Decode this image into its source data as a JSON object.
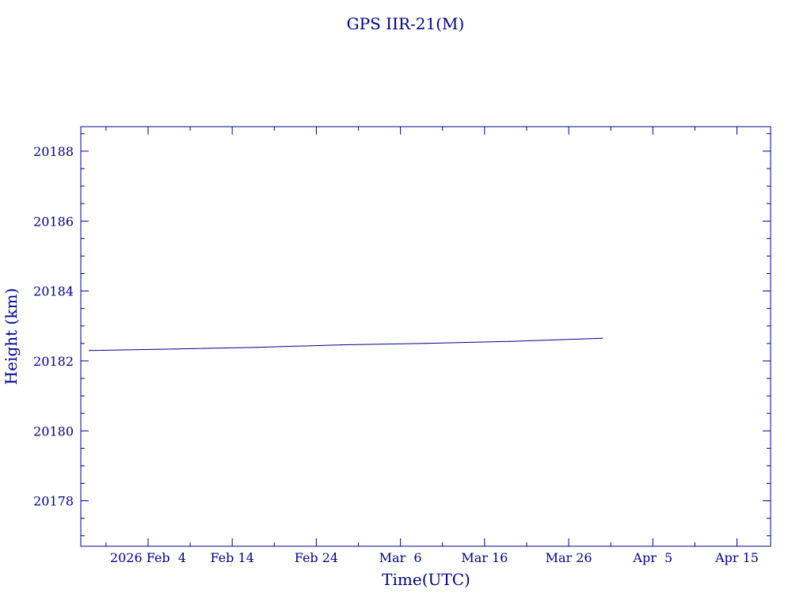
{
  "chart_data": {
    "type": "line",
    "title": "GPS IIR-21(M)",
    "xlabel": "Time(UTC)",
    "ylabel": "Height (km)",
    "x_tick_labels": [
      "2026 Feb  4",
      "Feb 14",
      "Feb 24",
      "Mar  6",
      "Mar 16",
      "Mar 26",
      "Apr  5",
      "Apr 15"
    ],
    "x_tick_dates": [
      "2026-02-04",
      "2026-02-14",
      "2026-02-24",
      "2026-03-06",
      "2026-03-16",
      "2026-03-26",
      "2026-04-05",
      "2026-04-15"
    ],
    "xlim": [
      "2026-01-27",
      "2026-04-19"
    ],
    "y_ticks": [
      20178,
      20180,
      20182,
      20184,
      20186,
      20188
    ],
    "ylim": [
      20176.7,
      20188.7
    ],
    "grid": false,
    "series": [
      {
        "x": [
          "2026-01-28",
          "2026-02-07",
          "2026-02-17",
          "2026-02-27",
          "2026-03-09",
          "2026-03-19",
          "2026-03-30"
        ],
        "values": [
          20182.3,
          20182.34,
          20182.39,
          20182.46,
          20182.5,
          20182.56,
          20182.65
        ]
      }
    ],
    "color": "#00008b"
  }
}
